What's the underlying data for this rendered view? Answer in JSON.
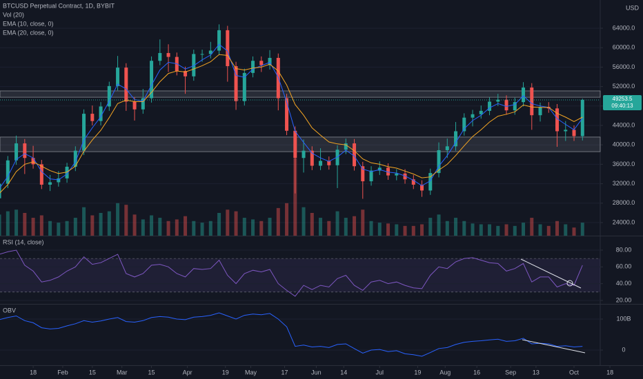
{
  "chart_data": [
    {
      "type": "candlestick",
      "title": "BTCUSD Perpetual Contract, 1D, BYBIT",
      "unit": "USD",
      "x": [
        1,
        5,
        9,
        13,
        17,
        21,
        25,
        29,
        33,
        37,
        41,
        45,
        49,
        53,
        57,
        61,
        65,
        69,
        73,
        77,
        81,
        85,
        89,
        93,
        97,
        101,
        105,
        109,
        113,
        117,
        121,
        125,
        129,
        133,
        137,
        141,
        145,
        149,
        153,
        157,
        161,
        165,
        169,
        173,
        177,
        181,
        185,
        189,
        193,
        197,
        201,
        205,
        209,
        213,
        217,
        221,
        225,
        229,
        233,
        237,
        241,
        245,
        249,
        253,
        257,
        261,
        265,
        269,
        273,
        277
      ],
      "open": [
        29000,
        32000,
        36800,
        40300,
        37300,
        36000,
        31800,
        32300,
        33100,
        35500,
        38800,
        46400,
        44900,
        47900,
        52100,
        55900,
        48900,
        47300,
        49600,
        57300,
        58900,
        58100,
        55200,
        54100,
        58700,
        58700,
        59400,
        63600,
        56200,
        49000,
        54800,
        57300,
        56400,
        57900,
        49600,
        42900,
        37300,
        38800,
        35700,
        36700,
        35800,
        39000,
        40300,
        35600,
        32500,
        34700,
        35300,
        33700,
        34100,
        32900,
        31800,
        30600,
        34200,
        38900,
        39700,
        42800,
        45600,
        46300,
        47000,
        48900,
        49300,
        47100,
        48800,
        51800,
        46100,
        47800,
        47500,
        42800,
        43100,
        41800
      ],
      "high": [
        33000,
        37700,
        41900,
        41200,
        39800,
        36900,
        33800,
        34600,
        36300,
        39700,
        47300,
        48100,
        48800,
        53000,
        58300,
        56800,
        49800,
        51500,
        58200,
        61700,
        60700,
        59000,
        56100,
        59600,
        59600,
        61200,
        64800,
        64500,
        57100,
        55700,
        58200,
        58200,
        59500,
        58800,
        50500,
        43800,
        41100,
        39700,
        39300,
        37600,
        39900,
        41300,
        41200,
        36500,
        35600,
        36600,
        36200,
        35000,
        35000,
        33800,
        32700,
        35100,
        40500,
        41300,
        44700,
        46500,
        47200,
        48100,
        49800,
        50500,
        50200,
        49700,
        52900,
        52700,
        48700,
        48800,
        48400,
        44900,
        44000,
        49500
      ],
      "low": [
        28600,
        31100,
        35900,
        34000,
        35100,
        30900,
        30500,
        31400,
        32200,
        34600,
        37900,
        44000,
        44000,
        47000,
        51200,
        47000,
        45000,
        46400,
        48700,
        56400,
        55000,
        54300,
        50500,
        53200,
        57100,
        57800,
        58500,
        53000,
        47200,
        48100,
        53900,
        55000,
        55500,
        47100,
        42000,
        30000,
        34300,
        34800,
        34800,
        34900,
        31100,
        38100,
        34700,
        28900,
        31600,
        33800,
        32800,
        32700,
        32000,
        30900,
        29300,
        29700,
        33300,
        37300,
        38800,
        41900,
        43800,
        45400,
        46100,
        48000,
        46200,
        46200,
        47900,
        43100,
        44800,
        46600,
        39600,
        40800,
        40800,
        40900
      ],
      "close": [
        32000,
        36800,
        40300,
        37300,
        36000,
        31800,
        32300,
        33100,
        35500,
        38800,
        46400,
        44900,
        47900,
        52100,
        55900,
        48900,
        47300,
        49600,
        57300,
        58900,
        58100,
        55200,
        54100,
        58700,
        58700,
        59400,
        63600,
        56200,
        49000,
        54800,
        57300,
        56400,
        57900,
        49600,
        42900,
        37300,
        38800,
        35700,
        36700,
        35800,
        39000,
        40300,
        35600,
        32500,
        34700,
        35300,
        33700,
        34100,
        32900,
        31800,
        30600,
        34200,
        38900,
        39700,
        42800,
        45600,
        46300,
        47000,
        48900,
        49300,
        47100,
        48800,
        51800,
        46100,
        47800,
        47500,
        42800,
        43100,
        41800,
        49250
      ],
      "up_color": "#26a69a",
      "down_color": "#ef5350",
      "series": [
        {
          "name": "EMA (10, close, 0)",
          "color": "#2962ff",
          "values": [
            31000,
            33500,
            37000,
            38200,
            37300,
            34500,
            33000,
            32800,
            34000,
            36500,
            41000,
            43500,
            45800,
            49000,
            52500,
            51500,
            49300,
            49000,
            52300,
            55400,
            57000,
            56700,
            55600,
            56300,
            57500,
            58500,
            60700,
            59300,
            54300,
            53900,
            55600,
            56300,
            57000,
            53900,
            48800,
            42800,
            40500,
            38300,
            37300,
            36600,
            37500,
            38900,
            37700,
            35000,
            34500,
            34900,
            34400,
            34200,
            33600,
            32700,
            31600,
            32600,
            35600,
            37800,
            40500,
            43300,
            45000,
            46100,
            47600,
            48500,
            47900,
            48300,
            50100,
            48500,
            48000,
            47700,
            45400,
            44200,
            43100,
            45500
          ]
        },
        {
          "name": "EMA (20, close, 0)",
          "color": "#f5a623",
          "values": [
            30000,
            31800,
            34500,
            36000,
            36500,
            35600,
            34700,
            34100,
            34400,
            35600,
            38700,
            41000,
            43000,
            45600,
            48500,
            49200,
            48900,
            48900,
            50800,
            53000,
            54700,
            55200,
            55000,
            55600,
            56300,
            57100,
            58600,
            58400,
            55700,
            55400,
            55800,
            56000,
            56600,
            55200,
            52300,
            48300,
            46100,
            43500,
            42000,
            40600,
            40200,
            40000,
            38800,
            37100,
            36300,
            36000,
            35500,
            35200,
            34600,
            34000,
            33200,
            33400,
            34800,
            36000,
            37800,
            39800,
            41700,
            43100,
            44700,
            45900,
            46300,
            46800,
            48200,
            47800,
            47700,
            47700,
            46500,
            45700,
            44800,
            45700
          ]
        }
      ],
      "volume": {
        "name": "Vol (20)",
        "ylim": [
          0,
          290
        ],
        "values": [
          26,
          30,
          32,
          28,
          22,
          25,
          18,
          16,
          18,
          22,
          35,
          25,
          28,
          30,
          40,
          38,
          26,
          20,
          25,
          22,
          18,
          20,
          24,
          18,
          16,
          18,
          28,
          32,
          30,
          22,
          20,
          18,
          22,
          34,
          40,
          95,
          35,
          28,
          22,
          18,
          30,
          22,
          24,
          32,
          18,
          16,
          15,
          14,
          12,
          12,
          14,
          22,
          26,
          18,
          22,
          18,
          15,
          14,
          14,
          12,
          14,
          12,
          16,
          22,
          14,
          12,
          18,
          14,
          10,
          16
        ]
      },
      "zones": [
        [
          49800,
          51100
        ],
        [
          38600,
          41600
        ]
      ],
      "last_price": {
        "value": 49253.5,
        "label": "49253.5"
      },
      "countdown": "09:40:13",
      "xlim": [
        1.3,
        285.4
      ],
      "xticks": [
        {
          "value": 17,
          "label": "18"
        },
        {
          "value": 31,
          "label": "Feb"
        },
        {
          "value": 45,
          "label": "15"
        },
        {
          "value": 59,
          "label": "Mar"
        },
        {
          "value": 73,
          "label": "15"
        },
        {
          "value": 90,
          "label": "Apr"
        },
        {
          "value": 108,
          "label": "19"
        },
        {
          "value": 120,
          "label": "May"
        },
        {
          "value": 136,
          "label": "17"
        },
        {
          "value": 151,
          "label": "Jun"
        },
        {
          "value": 164,
          "label": "14"
        },
        {
          "value": 181,
          "label": "Jul"
        },
        {
          "value": 199,
          "label": "19"
        },
        {
          "value": 212,
          "label": "Aug"
        },
        {
          "value": 227,
          "label": "16"
        },
        {
          "value": 243,
          "label": "Sep"
        },
        {
          "value": 255,
          "label": "13"
        },
        {
          "value": 273,
          "label": "Oct"
        },
        {
          "value": 290,
          "label": "18"
        }
      ],
      "ylim": [
        21305,
        69816
      ],
      "yticks": [
        {
          "value": 24000,
          "label": "24000.0"
        },
        {
          "value": 28000,
          "label": "28000.0"
        },
        {
          "value": 32000,
          "label": "32000.0"
        },
        {
          "value": 36000,
          "label": "36000.0"
        },
        {
          "value": 40000,
          "label": "40000.0"
        },
        {
          "value": 44000,
          "label": "44000.0"
        },
        {
          "value": 48000,
          "label": "48000.0"
        },
        {
          "value": 52000,
          "label": "52000.0"
        },
        {
          "value": 56000,
          "label": "56000.0"
        },
        {
          "value": 60000,
          "label": "60000.0"
        },
        {
          "value": 64000,
          "label": "64000.0"
        }
      ]
    },
    {
      "type": "line",
      "title": "RSI (14, close)",
      "color": "#7e57c2",
      "band": [
        30,
        70
      ],
      "values": [
        75,
        78,
        80,
        62,
        55,
        42,
        44,
        48,
        55,
        60,
        72,
        63,
        65,
        70,
        75,
        52,
        48,
        52,
        62,
        63,
        60,
        52,
        48,
        58,
        57,
        58,
        68,
        50,
        40,
        52,
        56,
        54,
        57,
        40,
        32,
        25,
        38,
        33,
        38,
        36,
        46,
        50,
        38,
        32,
        42,
        44,
        40,
        42,
        38,
        35,
        34,
        50,
        60,
        58,
        66,
        70,
        71,
        68,
        65,
        64,
        55,
        58,
        64,
        42,
        48,
        48,
        36,
        40,
        38,
        62
      ],
      "ylim": [
        16.7,
        96.4
      ],
      "yticks": [
        {
          "value": 20,
          "label": "20.00"
        },
        {
          "value": 40,
          "label": "40.00"
        },
        {
          "value": 60,
          "label": "60.00"
        },
        {
          "value": 80,
          "label": "80.00"
        }
      ]
    },
    {
      "type": "line",
      "title": "OBV",
      "color": "#2962ff",
      "values": [
        98,
        105,
        110,
        95,
        88,
        72,
        68,
        70,
        78,
        85,
        95,
        90,
        94,
        100,
        105,
        92,
        90,
        95,
        105,
        108,
        106,
        100,
        98,
        106,
        108,
        112,
        120,
        110,
        100,
        112,
        116,
        114,
        118,
        100,
        75,
        12,
        16,
        10,
        12,
        8,
        18,
        20,
        5,
        -10,
        0,
        2,
        -5,
        -2,
        -12,
        -15,
        -20,
        -8,
        5,
        8,
        18,
        25,
        28,
        30,
        33,
        35,
        28,
        30,
        38,
        20,
        22,
        20,
        12,
        14,
        10,
        12
      ],
      "ylim": [
        -48.9,
        146.7
      ],
      "yticks": [
        0,
        {
          "value": 100,
          "label": "100B"
        }
      ]
    }
  ]
}
